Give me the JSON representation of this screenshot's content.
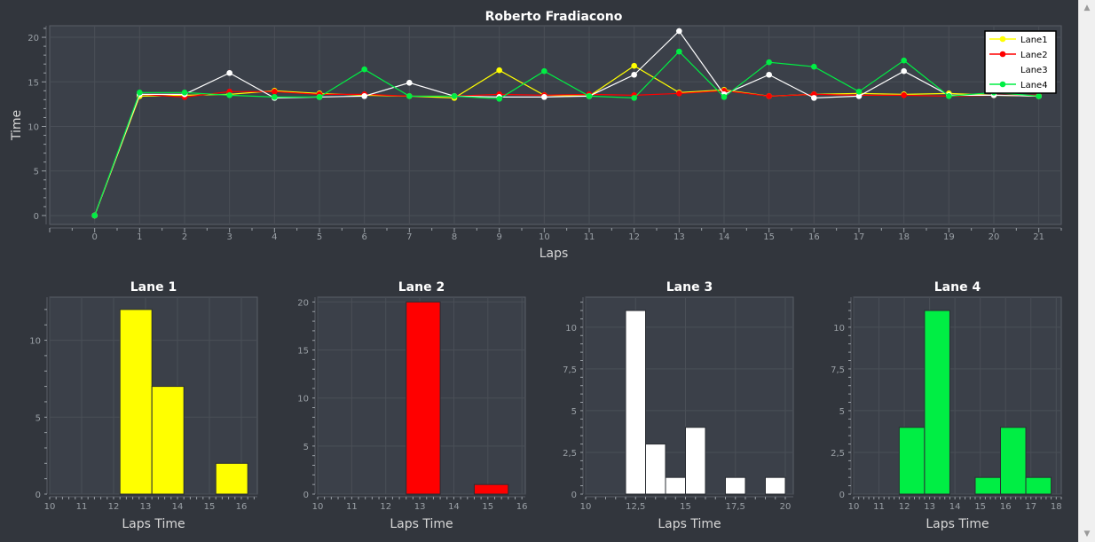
{
  "colors": {
    "background": "#32363d",
    "plot_area": "#3b4049",
    "frame": "#5a5f67",
    "grid": "#4a4f57",
    "tick_text": "#9aa0a6",
    "axis_title": "#d7d7d7",
    "title": "#ffffff",
    "lane1": "#ffff00",
    "lane2": "#ff0000",
    "lane3": "#ffffff",
    "lane4": "#00ee44"
  },
  "scrollbar": {
    "up_icon": "▲",
    "down_icon": "▼"
  },
  "chart_data": [
    {
      "type": "line",
      "title": "Roberto Fradiacono",
      "xlabel": "Laps",
      "ylabel": "Time",
      "x": [
        0,
        1,
        2,
        3,
        4,
        5,
        6,
        7,
        8,
        9,
        10,
        11,
        12,
        13,
        14,
        15,
        16,
        17,
        18,
        19,
        20,
        21
      ],
      "xlim": [
        -1,
        21.5
      ],
      "ylim": [
        -1,
        21.3
      ],
      "xticks": [
        "0",
        "1",
        "2",
        "3",
        "4",
        "5",
        "6",
        "7",
        "8",
        "9",
        "10",
        "11",
        "12",
        "13",
        "14",
        "15",
        "16",
        "17",
        "18",
        "19",
        "20",
        "21"
      ],
      "yticks": [
        "0",
        "5",
        "10",
        "15",
        "20"
      ],
      "legend_position": "top-right",
      "grid": true,
      "series": [
        {
          "name": "Lane1",
          "color": "#ffff00",
          "values": [
            0,
            13.4,
            13.5,
            13.6,
            14.0,
            13.7,
            13.5,
            13.4,
            13.2,
            16.3,
            13.5,
            13.4,
            16.8,
            13.8,
            14.1,
            13.4,
            13.6,
            13.7,
            13.6,
            13.7,
            13.5,
            13.4
          ]
        },
        {
          "name": "Lane2",
          "color": "#ff0000",
          "values": [
            0,
            13.6,
            13.3,
            13.9,
            13.9,
            13.6,
            13.6,
            13.4,
            13.4,
            13.6,
            13.5,
            13.6,
            13.5,
            13.7,
            14.0,
            13.4,
            13.6,
            13.5,
            13.5,
            13.4,
            13.5,
            13.5
          ]
        },
        {
          "name": "Lane3",
          "color": "#ffffff",
          "values": [
            0,
            13.6,
            13.6,
            16.0,
            13.2,
            13.3,
            13.4,
            14.9,
            13.4,
            13.3,
            13.3,
            13.4,
            15.8,
            20.7,
            13.6,
            15.8,
            13.2,
            13.4,
            16.2,
            13.5,
            13.5,
            13.4
          ]
        },
        {
          "name": "Lane4",
          "color": "#00ee44",
          "values": [
            0,
            13.8,
            13.8,
            13.5,
            13.3,
            13.3,
            16.4,
            13.4,
            13.4,
            13.1,
            16.2,
            13.4,
            13.2,
            18.4,
            13.3,
            17.2,
            16.7,
            13.9,
            17.4,
            13.4,
            13.8,
            13.4
          ]
        }
      ]
    },
    {
      "type": "bar",
      "title": "Lane 1",
      "xlabel": "Laps Time",
      "color": "#ffff00",
      "xlim": [
        10,
        16.5
      ],
      "ylim": [
        0,
        12.8
      ],
      "xticks": [
        {
          "v": 10,
          "t": "10"
        },
        {
          "v": 11,
          "t": "11"
        },
        {
          "v": 12,
          "t": "12"
        },
        {
          "v": 13,
          "t": "13"
        },
        {
          "v": 14,
          "t": "14"
        },
        {
          "v": 15,
          "t": "15"
        },
        {
          "v": 16,
          "t": "16"
        }
      ],
      "yticks": [
        {
          "v": 0,
          "t": "0"
        },
        {
          "v": 5,
          "t": "5"
        },
        {
          "v": 10,
          "t": "10"
        }
      ],
      "minor_x": 0.2,
      "minor_y": 1,
      "bins": [
        {
          "from": 12.2,
          "to": 13.2,
          "count": 12
        },
        {
          "from": 13.2,
          "to": 14.2,
          "count": 7
        },
        {
          "from": 15.2,
          "to": 16.2,
          "count": 2
        }
      ]
    },
    {
      "type": "bar",
      "title": "Lane 2",
      "xlabel": "Laps Time",
      "color": "#ff0000",
      "xlim": [
        10,
        16.1
      ],
      "ylim": [
        0,
        20.5
      ],
      "xticks": [
        {
          "v": 10,
          "t": "10"
        },
        {
          "v": 11,
          "t": "11"
        },
        {
          "v": 12,
          "t": "12"
        },
        {
          "v": 13,
          "t": "13"
        },
        {
          "v": 14,
          "t": "14"
        },
        {
          "v": 15,
          "t": "15"
        },
        {
          "v": 16,
          "t": "16"
        }
      ],
      "yticks": [
        {
          "v": 0,
          "t": "0"
        },
        {
          "v": 5,
          "t": "5"
        },
        {
          "v": 10,
          "t": "10"
        },
        {
          "v": 15,
          "t": "15"
        },
        {
          "v": 20,
          "t": "20"
        }
      ],
      "minor_x": 0.2,
      "minor_y": 1,
      "bins": [
        {
          "from": 12.6,
          "to": 13.6,
          "count": 20
        },
        {
          "from": 14.6,
          "to": 15.6,
          "count": 1
        }
      ]
    },
    {
      "type": "bar",
      "title": "Lane 3",
      "xlabel": "Laps Time",
      "color": "#ffffff",
      "xlim": [
        10,
        20.4
      ],
      "ylim": [
        0,
        11.8
      ],
      "xticks": [
        {
          "v": 10,
          "t": "10"
        },
        {
          "v": 12.5,
          "t": "12,5"
        },
        {
          "v": 15,
          "t": "15"
        },
        {
          "v": 17.5,
          "t": "17,5"
        },
        {
          "v": 20,
          "t": "20"
        }
      ],
      "yticks": [
        {
          "v": 0,
          "t": "0"
        },
        {
          "v": 2.5,
          "t": "2,5"
        },
        {
          "v": 5,
          "t": "5"
        },
        {
          "v": 7.5,
          "t": "7,5"
        },
        {
          "v": 10,
          "t": "10"
        }
      ],
      "minor_x": 0.5,
      "minor_y": 0.5,
      "bins": [
        {
          "from": 12.0,
          "to": 13.0,
          "count": 11
        },
        {
          "from": 13.0,
          "to": 14.0,
          "count": 3
        },
        {
          "from": 14.0,
          "to": 15.0,
          "count": 1
        },
        {
          "from": 15.0,
          "to": 16.0,
          "count": 4
        },
        {
          "from": 17.0,
          "to": 18.0,
          "count": 1
        },
        {
          "from": 19.0,
          "to": 20.0,
          "count": 1
        }
      ]
    },
    {
      "type": "bar",
      "title": "Lane 4",
      "xlabel": "Laps Time",
      "color": "#00ee44",
      "xlim": [
        10,
        18.2
      ],
      "ylim": [
        0,
        11.8
      ],
      "xticks": [
        {
          "v": 10,
          "t": "10"
        },
        {
          "v": 11,
          "t": "11"
        },
        {
          "v": 12,
          "t": "12"
        },
        {
          "v": 13,
          "t": "13"
        },
        {
          "v": 14,
          "t": "14"
        },
        {
          "v": 15,
          "t": "15"
        },
        {
          "v": 16,
          "t": "16"
        },
        {
          "v": 17,
          "t": "17"
        },
        {
          "v": 18,
          "t": "18"
        }
      ],
      "yticks": [
        {
          "v": 0,
          "t": "0"
        },
        {
          "v": 2.5,
          "t": "2,5"
        },
        {
          "v": 5,
          "t": "5"
        },
        {
          "v": 7.5,
          "t": "7,5"
        },
        {
          "v": 10,
          "t": "10"
        }
      ],
      "minor_x": 0.2,
      "minor_y": 0.5,
      "bins": [
        {
          "from": 11.8,
          "to": 12.8,
          "count": 4
        },
        {
          "from": 12.8,
          "to": 13.8,
          "count": 11
        },
        {
          "from": 14.8,
          "to": 15.8,
          "count": 1
        },
        {
          "from": 15.8,
          "to": 16.8,
          "count": 4
        },
        {
          "from": 16.8,
          "to": 17.8,
          "count": 1
        }
      ]
    }
  ]
}
